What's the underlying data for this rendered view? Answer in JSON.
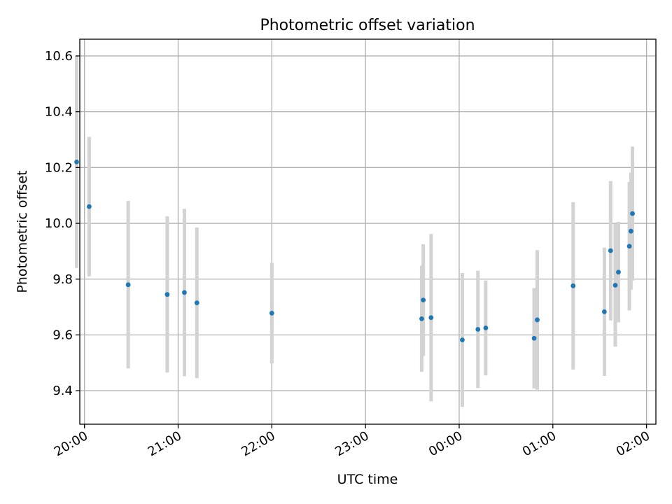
{
  "chart_data": {
    "type": "scatter",
    "title": "Photometric offset variation",
    "xlabel": "UTC time",
    "ylabel": "Photometric offset",
    "xlim": [
      "19:57",
      "02:06"
    ],
    "ylim": [
      9.28,
      10.66
    ],
    "xticks": [
      "20:00",
      "21:00",
      "22:00",
      "23:00",
      "00:00",
      "01:00",
      "02:00"
    ],
    "yticks": [
      "9.4",
      "9.6",
      "9.8",
      "10.0",
      "10.2",
      "10.4",
      "10.6"
    ],
    "grid": true,
    "colors": {
      "point": "#1f77b4",
      "errorbar": "#d3d3d3",
      "grid": "#b0b0b0"
    },
    "series": [
      {
        "points": [
          {
            "x": "19:55",
            "y": 10.22,
            "err": 0.38
          },
          {
            "x": "20:03",
            "y": 10.06,
            "err": 0.25
          },
          {
            "x": "20:28",
            "y": 9.78,
            "err": 0.3
          },
          {
            "x": "20:53",
            "y": 9.745,
            "err": 0.28
          },
          {
            "x": "21:04",
            "y": 9.752,
            "err": 0.3
          },
          {
            "x": "21:12",
            "y": 9.715,
            "err": 0.27
          },
          {
            "x": "22:00",
            "y": 9.678,
            "err": 0.18
          },
          {
            "x": "23:36",
            "y": 9.658,
            "err": 0.19
          },
          {
            "x": "23:37",
            "y": 9.725,
            "err": 0.2
          },
          {
            "x": "23:42",
            "y": 9.662,
            "err": 0.3
          },
          {
            "x": "00:02",
            "y": 9.582,
            "err": 0.24
          },
          {
            "x": "00:12",
            "y": 9.62,
            "err": 0.21
          },
          {
            "x": "00:17",
            "y": 9.625,
            "err": 0.17
          },
          {
            "x": "00:48",
            "y": 9.588,
            "err": 0.18
          },
          {
            "x": "00:50",
            "y": 9.654,
            "err": 0.25
          },
          {
            "x": "01:13",
            "y": 9.776,
            "err": 0.3
          },
          {
            "x": "01:33",
            "y": 9.683,
            "err": 0.23
          },
          {
            "x": "01:37",
            "y": 9.902,
            "err": 0.25
          },
          {
            "x": "01:40",
            "y": 9.778,
            "err": 0.22
          },
          {
            "x": "01:42",
            "y": 9.825,
            "err": 0.18
          },
          {
            "x": "01:49",
            "y": 9.918,
            "err": 0.23
          },
          {
            "x": "01:50",
            "y": 9.972,
            "err": 0.21
          },
          {
            "x": "01:51",
            "y": 10.035,
            "err": 0.24
          }
        ]
      }
    ]
  }
}
